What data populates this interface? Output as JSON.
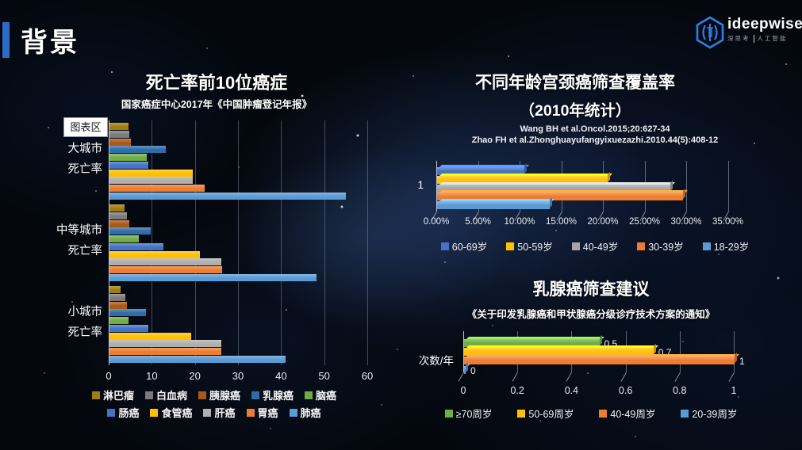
{
  "slide": {
    "title": "背景"
  },
  "logo": {
    "wordmark": "ideepwise",
    "tagline_left": "深思考",
    "tagline_right": "人工智能",
    "brand_color": "#2f7fe8"
  },
  "colors": {
    "accent_bar": "#2e6bc9",
    "background": "#04070d",
    "text": "#ffffff"
  },
  "chart_data": [
    {
      "type": "bar",
      "orientation": "horizontal",
      "title": "死亡率前10位癌症",
      "subtitle": "国家癌症中心2017年《中国肿瘤登记年报》",
      "chart_area_label": "图表区",
      "categories": [
        "大城市死亡率",
        "中等城市死亡率",
        "小城市死亡率"
      ],
      "series": [
        {
          "name": "淋巴瘤",
          "color": "#A07D10",
          "values": [
            4.4,
            3.5,
            2.6
          ]
        },
        {
          "name": "白血病",
          "color": "#7B7B7B",
          "values": [
            4.6,
            4.0,
            3.7
          ]
        },
        {
          "name": "胰腺癌",
          "color": "#AC5817",
          "values": [
            4.9,
            4.6,
            4.0
          ]
        },
        {
          "name": "乳腺癌",
          "color": "#2E6DA8",
          "values": [
            13.0,
            9.6,
            8.5
          ]
        },
        {
          "name": "脑癌",
          "color": "#70AD47",
          "values": [
            8.6,
            6.9,
            4.4
          ]
        },
        {
          "name": "肠癌",
          "color": "#4472C4",
          "values": [
            9.1,
            12.6,
            9.0
          ]
        },
        {
          "name": "食管癌",
          "color": "#FFC000",
          "values": [
            19.3,
            20.9,
            19.0
          ]
        },
        {
          "name": "肝癌",
          "color": "#AFAFAF",
          "values": [
            19.4,
            26.0,
            26.0
          ]
        },
        {
          "name": "胃癌",
          "color": "#ED7D31",
          "values": [
            22.0,
            26.2,
            25.9
          ]
        },
        {
          "name": "肺癌",
          "color": "#5B9BD5",
          "values": [
            54.8,
            48.1,
            40.9
          ]
        }
      ],
      "xlim": [
        0,
        60
      ],
      "xticks": [
        0,
        10,
        20,
        30,
        40,
        50,
        60
      ],
      "grid": true,
      "legend_position": "bottom",
      "legend_rows": 2
    },
    {
      "type": "bar",
      "orientation": "horizontal",
      "style": "3d",
      "title": "不同年龄宫颈癌筛查覆盖率",
      "title_line2": "（2010年统计）",
      "source_lines": [
        "Wang BH et al.Oncol.2015;20:627-34",
        "Zhao FH et al.Zhonghuayufangyixuezazhi.2010.44(5):408-12"
      ],
      "categories": [
        "1"
      ],
      "series": [
        {
          "name": "60-69岁",
          "color": "#4472C4",
          "values": [
            10.5
          ]
        },
        {
          "name": "50-59岁",
          "color": "#FFC000",
          "values": [
            20.5
          ]
        },
        {
          "name": "40-49岁",
          "color": "#A5A5A5",
          "values": [
            28.0
          ]
        },
        {
          "name": "30-39岁",
          "color": "#ED7D31",
          "values": [
            29.5
          ]
        },
        {
          "name": "18-29岁",
          "color": "#5B9BD5",
          "values": [
            13.5
          ]
        }
      ],
      "xlim": [
        0,
        35
      ],
      "xticks": [
        "0.00%",
        "5.00%",
        "10.00%",
        "15.00%",
        "20.00%",
        "25.00%",
        "30.00%",
        "35.00%"
      ],
      "grid": true,
      "legend_position": "bottom"
    },
    {
      "type": "bar",
      "orientation": "horizontal",
      "style": "3d",
      "title": "乳腺癌筛查建议",
      "subtitle": "《关于印发乳腺癌和甲状腺癌分级诊疗技术方案的通知》",
      "categories": [
        "次数/年"
      ],
      "series": [
        {
          "name": "≥70周岁",
          "color": "#70AD47",
          "values": [
            0.5
          ],
          "data_label": "0.5"
        },
        {
          "name": "50-69周岁",
          "color": "#FFC000",
          "values": [
            0.7
          ],
          "data_label": "0.7"
        },
        {
          "name": "40-49周岁",
          "color": "#ED7D31",
          "values": [
            1
          ],
          "data_label": "1"
        },
        {
          "name": "20-39周岁",
          "color": "#5B9BD5",
          "values": [
            0
          ],
          "data_label": "0"
        }
      ],
      "xlim": [
        0,
        1
      ],
      "xticks": [
        "0",
        "0.2",
        "0.4",
        "0.6",
        "0.8",
        "1"
      ],
      "grid": true,
      "data_labels": true,
      "legend_position": "bottom"
    }
  ]
}
